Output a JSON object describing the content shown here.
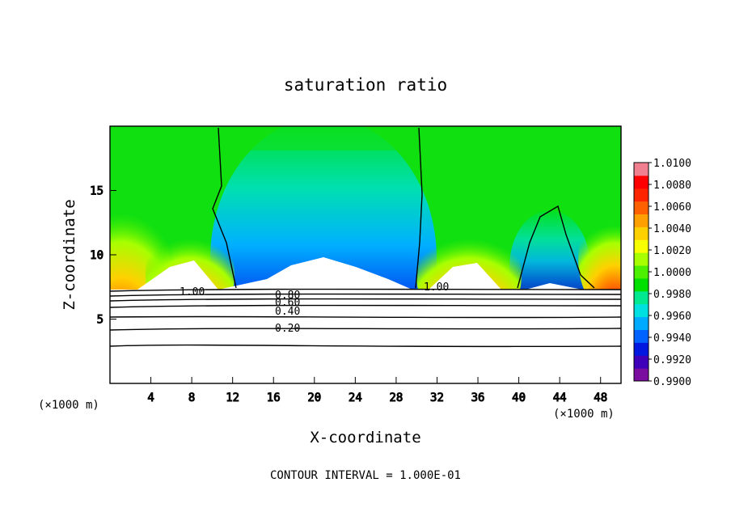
{
  "chart_data": {
    "type": "heatmap",
    "title": "saturation ratio",
    "xlabel": "X-coordinate",
    "ylabel": "Z-coordinate",
    "x_unit": "(×1000 m)",
    "x_unit_right": "(×1000 m)",
    "xlim": [
      0,
      50
    ],
    "ylim": [
      0,
      20
    ],
    "x_ticks": [
      4,
      8,
      12,
      16,
      20,
      24,
      28,
      32,
      36,
      40,
      44,
      48
    ],
    "y_ticks": [
      5,
      10,
      15
    ],
    "footer": "CONTOUR INTERVAL = 1.000E-01",
    "colorbar": {
      "min": 0.99,
      "max": 1.01,
      "labels": [
        "1.0100",
        "1.0080",
        "1.0060",
        "1.0040",
        "1.0020",
        "1.0000",
        "0.9980",
        "0.9960",
        "0.9940",
        "0.9920",
        "0.9900"
      ],
      "colors": [
        "#7a0da0",
        "#3e00b8",
        "#0018e0",
        "#0062ff",
        "#00aaff",
        "#00e0e0",
        "#00e890",
        "#00e000",
        "#4cf000",
        "#a8ff00",
        "#f8ff00",
        "#ffd000",
        "#ffa000",
        "#ff6000",
        "#ff2400",
        "#ff0000",
        "#f08090"
      ]
    },
    "contour_labels": [
      "1.00",
      "0.80",
      "0.60",
      "0.40",
      "0.20",
      "1.00"
    ]
  }
}
